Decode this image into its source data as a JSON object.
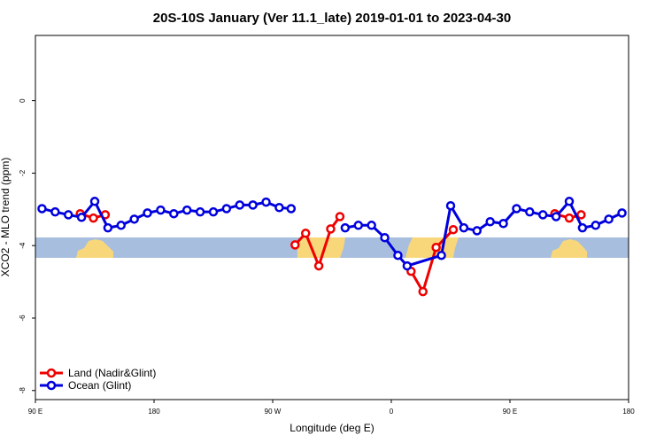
{
  "chart_data": {
    "type": "line",
    "title": "20S-10S January (Ver 11.1_late)   2019-01-01 to 2023-04-30",
    "x_label": "Longitude (deg E)",
    "y_label": "XCO2 - MLO trend (ppm)",
    "xlim": [
      90,
      540
    ],
    "xticks": [
      {
        "value": 90,
        "label": "90 E"
      },
      {
        "value": 180,
        "label": "180"
      },
      {
        "value": 270,
        "label": "90 W"
      },
      {
        "value": 360,
        "label": "0"
      },
      {
        "value": 450,
        "label": "90 E"
      },
      {
        "value": 540,
        "label": "180"
      }
    ],
    "ylim": [
      -8.25,
      1.8
    ],
    "yticks": [
      0,
      -2,
      -4,
      -6,
      -8
    ],
    "legend": "bottom-left",
    "series": [
      {
        "name": "Land (Nadir&Glint)",
        "color": "#ee0000",
        "x": [
          124,
          134,
          143,
          230,
          287,
          295,
          305,
          314,
          321,
          350,
          375,
          384,
          394,
          407,
          450,
          484,
          495,
          504
        ],
        "values": [
          -3.12,
          -3.24,
          -3.15,
          null,
          -3.98,
          -3.66,
          -4.56,
          -3.54,
          -3.2,
          null,
          -4.71,
          -5.27,
          -4.05,
          -3.56,
          null,
          -3.12,
          -3.24,
          -3.15
        ]
      },
      {
        "name": "Ocean (Glint)",
        "color": "#0000dd",
        "x": [
          95,
          105,
          115,
          125,
          135,
          145,
          155,
          165,
          175,
          185,
          195,
          205,
          215,
          225,
          235,
          245,
          255,
          265,
          275,
          284,
          305,
          325,
          335,
          345,
          355,
          365,
          372,
          398,
          405,
          415,
          425,
          435,
          445,
          455,
          465,
          475,
          485,
          495,
          505,
          515,
          525,
          535
        ],
        "values": [
          -2.98,
          -3.07,
          -3.15,
          -3.22,
          -2.78,
          -3.51,
          -3.44,
          -3.27,
          -3.1,
          -3.02,
          -3.12,
          -3.02,
          -3.07,
          -3.07,
          -2.98,
          -2.88,
          -2.88,
          -2.8,
          -2.95,
          -2.98,
          null,
          -3.51,
          -3.44,
          -3.44,
          -3.78,
          -4.27,
          -4.56,
          -4.27,
          -2.9,
          -3.51,
          -3.59,
          -3.34,
          -3.39,
          -2.98,
          -3.07,
          -3.15,
          -3.2,
          -2.78,
          -3.51,
          -3.44,
          -3.27,
          -3.1
        ]
      }
    ]
  }
}
